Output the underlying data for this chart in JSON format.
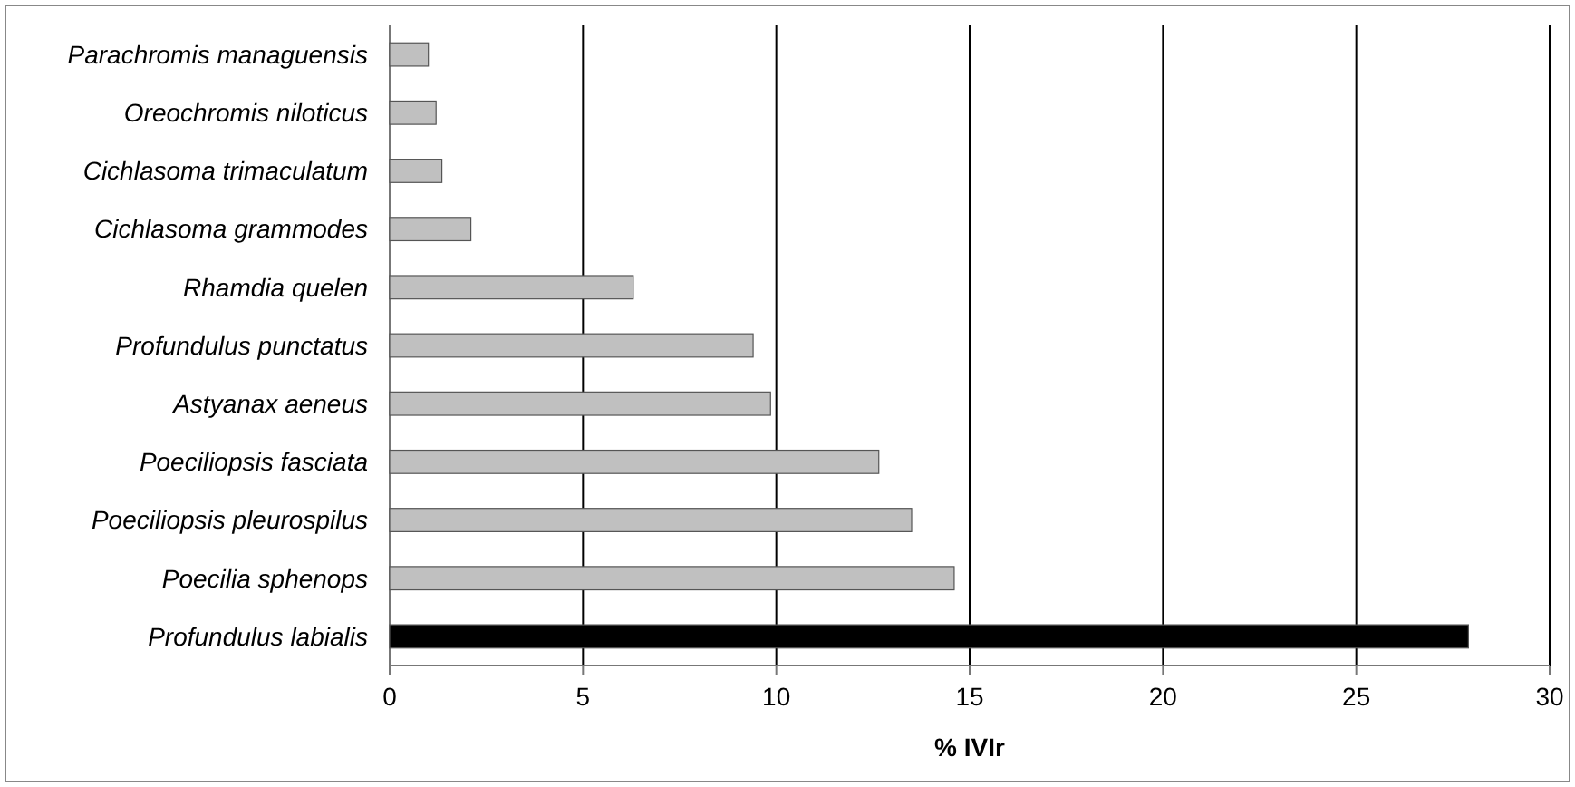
{
  "chart_data": {
    "type": "bar",
    "orientation": "horizontal",
    "xlabel": "% IVIr",
    "categories": [
      "Parachromis managuensis",
      "Oreochromis niloticus",
      "Cichlasoma trimaculatum",
      "Cichlasoma grammodes",
      "Rhamdia quelen",
      "Profundulus punctatus",
      "Astyanax aeneus",
      "Poeciliopsis fasciata",
      "Poeciliopsis pleurospilus",
      "Poecilia sphenops",
      "Profundulus labialis"
    ],
    "values": [
      1.0,
      1.2,
      1.35,
      2.1,
      6.3,
      9.4,
      9.85,
      12.65,
      13.5,
      14.6,
      27.9
    ],
    "colors": [
      "#c0c0c0",
      "#c0c0c0",
      "#c0c0c0",
      "#c0c0c0",
      "#c0c0c0",
      "#c0c0c0",
      "#c0c0c0",
      "#c0c0c0",
      "#c0c0c0",
      "#c0c0c0",
      "#000000"
    ],
    "xlim": [
      0,
      30
    ],
    "xticks": [
      0,
      5,
      10,
      15,
      20,
      25,
      30
    ],
    "grid": "x"
  }
}
